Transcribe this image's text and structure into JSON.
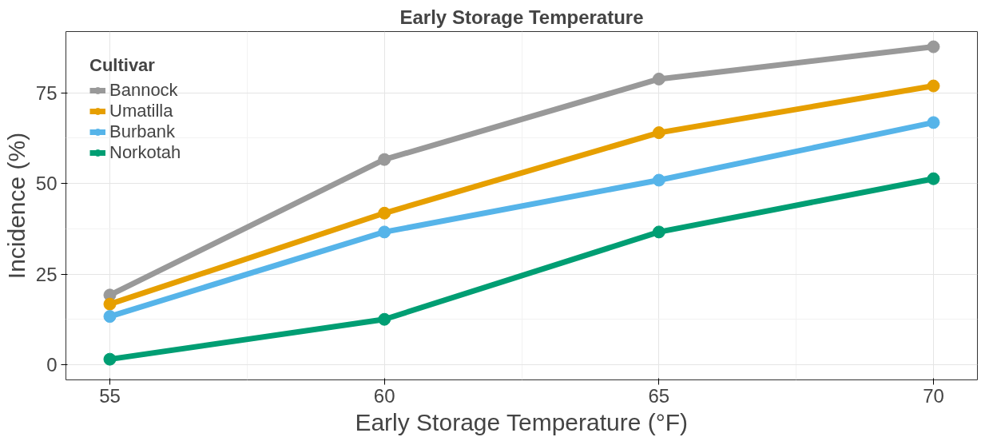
{
  "chart_data": {
    "type": "line",
    "title": "Early Storage Temperature",
    "xlabel": "Early Storage Temperature (°F)",
    "ylabel": "Incidence (%)",
    "legend_title": "Cultivar",
    "x": [
      55,
      60,
      65,
      70
    ],
    "series": [
      {
        "name": "Bannock",
        "color": "#999999",
        "values": [
          19.2,
          56.6,
          78.8,
          87.7
        ]
      },
      {
        "name": "Umatilla",
        "color": "#e69f00",
        "values": [
          16.7,
          41.8,
          64.0,
          76.9
        ]
      },
      {
        "name": "Burbank",
        "color": "#56b4e9",
        "values": [
          13.3,
          36.6,
          50.9,
          66.8
        ]
      },
      {
        "name": "Norkotah",
        "color": "#009e73",
        "values": [
          1.5,
          12.5,
          36.6,
          51.3
        ]
      }
    ],
    "xlim": [
      54.2,
      70.8
    ],
    "ylim": [
      -4.2,
      91.9
    ],
    "xticks": [
      55,
      60,
      65,
      70
    ],
    "yticks": [
      0,
      25,
      50,
      75
    ],
    "grid": true,
    "legend": "top left",
    "marker": "circle",
    "line_style": "solid"
  }
}
